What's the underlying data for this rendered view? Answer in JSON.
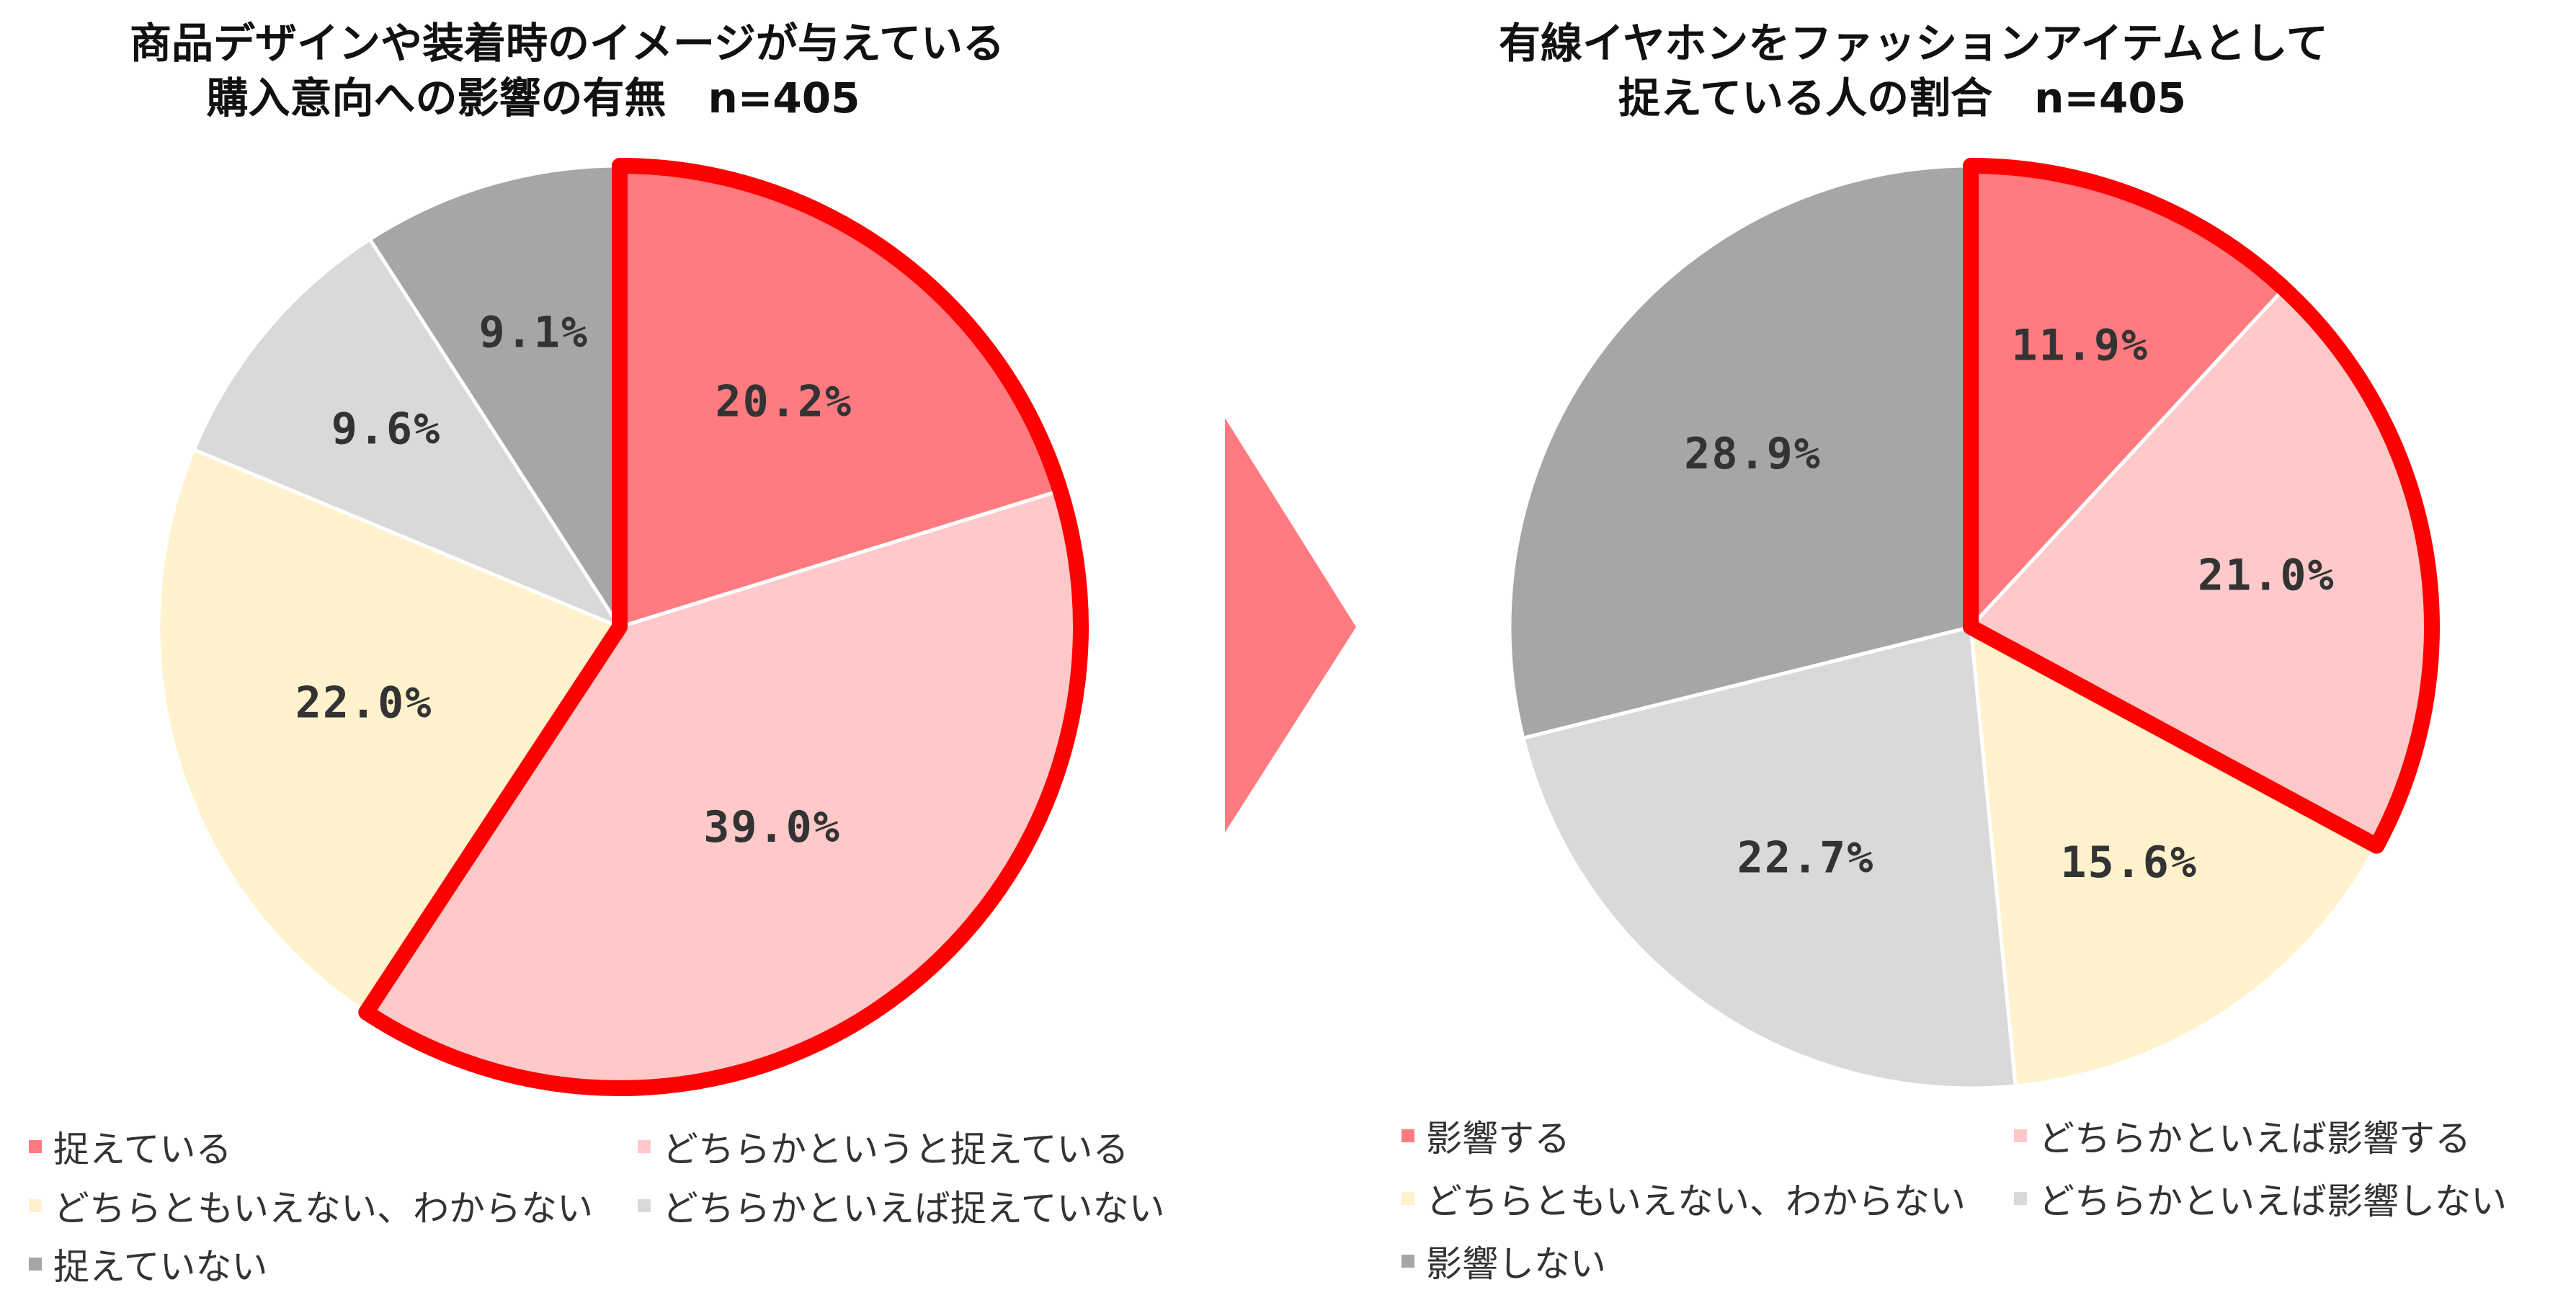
{
  "colors": {
    "highlight_outline": "#ff0000",
    "arrow": "#ff7b80",
    "slice_border": "#ffffff"
  },
  "chart_data": [
    {
      "type": "pie",
      "title_lines": [
        "商品デザインや装着時のイメージが与えている",
        "購入意向への影響の有無　n=405"
      ],
      "slices": [
        {
          "label": "捉えている",
          "value": 20.2,
          "display": "20.2%",
          "color": "#ff7b80"
        },
        {
          "label": "どちらかというと捉えている",
          "value": 39.0,
          "display": "39.0%",
          "color": "#ffc9c9"
        },
        {
          "label": "どちらともいえない、わからない",
          "value": 22.0,
          "display": "22.0%",
          "color": "#fff2cc"
        },
        {
          "label": "どちらかといえば捉えていない",
          "value": 9.6,
          "display": "9.6%",
          "color": "#d9d9d9"
        },
        {
          "label": "捉えていない",
          "value": 9.1,
          "display": "9.1%",
          "color": "#a6a6a6"
        }
      ],
      "highlighted_slices": [
        0,
        1
      ],
      "start_angle_deg": 0,
      "direction": "clockwise"
    },
    {
      "type": "pie",
      "title_lines": [
        "有線イヤホンをファッションアイテムとして",
        "捉えている人の割合　n=405"
      ],
      "slices": [
        {
          "label": "影響する",
          "value": 11.9,
          "display": "11.9%",
          "color": "#ff7b80"
        },
        {
          "label": "どちらかといえば影響する",
          "value": 21.0,
          "display": "21.0%",
          "color": "#ffc9c9"
        },
        {
          "label": "どちらともいえない、わからない",
          "value": 15.6,
          "display": "15.6%",
          "color": "#fff2cc"
        },
        {
          "label": "どちらかといえば影響しない",
          "value": 22.7,
          "display": "22.7%",
          "color": "#d9d9d9"
        },
        {
          "label": "影響しない",
          "value": 28.9,
          "display": "28.9%",
          "color": "#a6a6a6"
        }
      ],
      "highlighted_slices": [
        0,
        1
      ],
      "start_angle_deg": 0,
      "direction": "clockwise"
    }
  ]
}
